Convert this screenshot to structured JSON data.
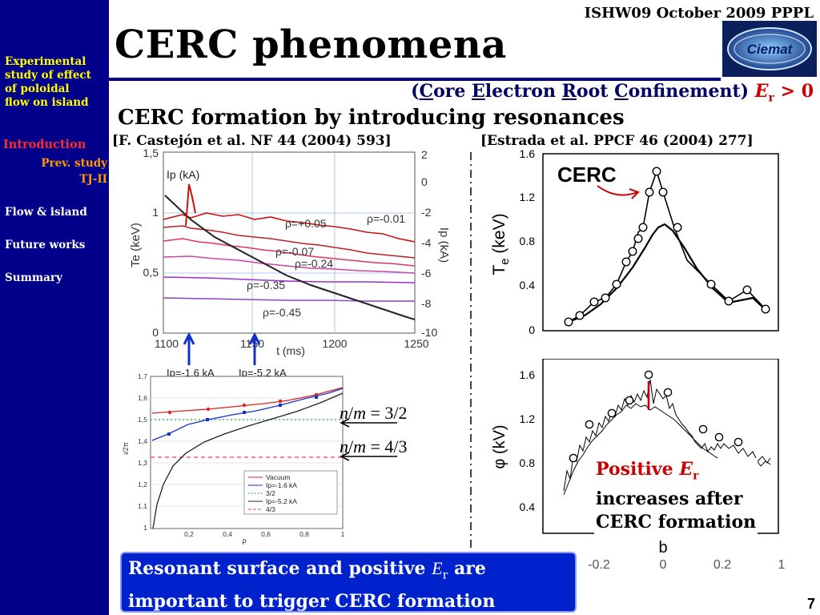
{
  "sidebar": {
    "items": [
      {
        "label_lines": [
          "Experimental",
          "study of effect",
          "of poloidal",
          "flow on island"
        ],
        "color": "#ffff00"
      },
      {
        "label": "Introduction",
        "color": "#ff2a2a"
      },
      {
        "label": "Prev. study",
        "color": "#ff9900"
      },
      {
        "label": "TJ-II",
        "color": "#ff9900"
      },
      {
        "label": "Flow & island",
        "color": "#ffffff"
      },
      {
        "label": "Future works",
        "color": "#ffffff"
      },
      {
        "label": "Summary",
        "color": "#ffffff"
      }
    ]
  },
  "header": {
    "conference": "ISHW09 October 2009 PPPL",
    "title": "CERC phenomena",
    "logo_text": "Ciemat"
  },
  "subtitle": {
    "open": "(",
    "c1": "C",
    "w1": "ore ",
    "c2": "E",
    "w2": "lectron ",
    "c3": "R",
    "w3": "oot ",
    "c4": "C",
    "w4": "onfinement)",
    "er_symbol": "E",
    "er_sub": "r",
    "er_rel": " > 0"
  },
  "section_heading": "CERC formation by introducing resonances",
  "references": {
    "left": "[F. Castejón et al. NF 44 (2004) 593]",
    "right": "[Estrada et al. PPCF 46 (2004) 277]"
  },
  "figure_te_time": {
    "ylabel_left": "Te (keV)",
    "ylabel_right": "Ip (kA)",
    "xlabel": "t (ms)",
    "legend_ip": "Ip (kA)",
    "yticks_left": [
      "1,5",
      "1",
      "0,5",
      "0"
    ],
    "yticks_right": [
      "2",
      "0",
      "-2",
      "-4",
      "-6",
      "-8",
      "-10"
    ],
    "xticks": [
      "1100",
      "1150",
      "1200",
      "1250"
    ],
    "rho_labels": [
      "ρ=+0.05",
      "ρ=-0.01",
      "ρ=-0.07",
      "ρ=-0.24",
      "ρ=-0.35",
      "ρ=-0.45"
    ],
    "arrow_labels": [
      "Ip=-1.6 kA",
      "Ip=-5.2 kA"
    ]
  },
  "figure_iota": {
    "ylabel": "ι/2π",
    "xlabel": "ρ",
    "yticks": [
      "1,7",
      "1,6",
      "1,5",
      "1,4",
      "1,3",
      "1,2",
      "1,1",
      "1"
    ],
    "xticks": [
      "0,2",
      "0,4",
      "0,6",
      "0,8",
      "1"
    ],
    "legend": [
      "Vacuum",
      "Ip=-1.6 kA",
      "3/2",
      "Ip=-5.2 kA",
      "4/3"
    ],
    "colors": {
      "vacuum": "#dd2222",
      "ip16": "#1133cc",
      "r32": "#22aa44",
      "ip52": "#222222",
      "r43": "#ee3377"
    }
  },
  "resonances": [
    {
      "n": "n",
      "slash": "/",
      "m": "m",
      "value": " = 3/2"
    },
    {
      "n": "n",
      "slash": "/",
      "m": "m",
      "value": " = 4/3"
    }
  ],
  "figure_te_profile": {
    "ylabel_main": "T",
    "ylabel_sub": "e",
    "ylabel_unit": " (keV)",
    "yticks": [
      "1.6",
      "1.2",
      "0.8",
      "0.4",
      "0"
    ],
    "cerc_label": "CERC"
  },
  "figure_phi_profile": {
    "ylabel": "φ (kV)",
    "yticks": [
      "1.6",
      "1.2",
      "0.8",
      "0.4"
    ],
    "xlabel": "b",
    "xticks": [
      "-0.2",
      "0",
      "0.2",
      "1"
    ]
  },
  "positive_er": {
    "line1_prefix": "Positive ",
    "er_symbol": "E",
    "er_sub": "r",
    "line2": "increases after",
    "line3": "CERC formation"
  },
  "conclusion": {
    "part1": "Resonant surface and positive ",
    "er_symbol": "E",
    "er_sub": "r",
    "part2": " are",
    "line2": "important to trigger CERC formation"
  },
  "page_number": "7"
}
